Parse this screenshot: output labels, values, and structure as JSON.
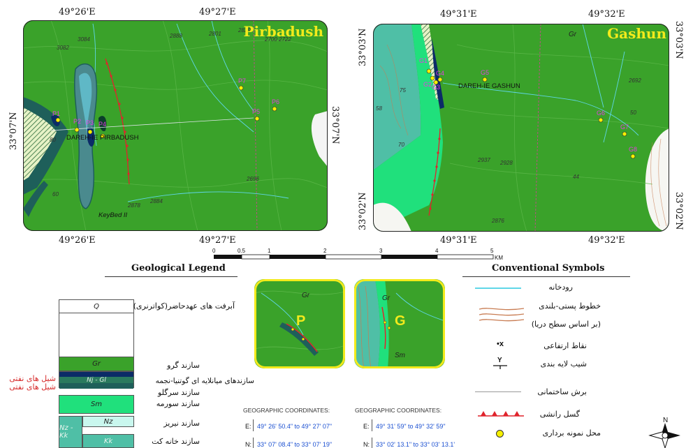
{
  "maps": {
    "left": {
      "title": "Pirbadush",
      "lon_labels": [
        "49°26'E",
        "49°27'E",
        "49°26'E",
        "49°27'E"
      ],
      "lat_left": "33°07'N",
      "lat_right": "33°07'N",
      "valley_label": "DAREH-IE PIRBADUSH",
      "keybed_label": "KeyBed II",
      "points": [
        "P1",
        "P2",
        "P3",
        "P4",
        "P5",
        "P6",
        "P7"
      ],
      "spot_heights": [
        "3082",
        "3084",
        "2888",
        "2801",
        "2829",
        "2700",
        "2722",
        "2696",
        "2878",
        "2884",
        "80",
        "60"
      ]
    },
    "right": {
      "title": "Gashun",
      "lon_labels": [
        "49°31'E",
        "49°32'E",
        "49°31'E",
        "49°32'E"
      ],
      "lat_left_top": "33°03'N",
      "lat_left_bottom": "33°02'N",
      "lat_right_top": "33°03'N",
      "lat_right_bottom": "33°02'N",
      "gr_label": "Gr",
      "valley_label": "DAREH-IE GASHUN",
      "points": [
        "G1",
        "G2",
        "G3",
        "G4",
        "G5",
        "G6",
        "G7",
        "G8"
      ],
      "spot_heights": [
        "2937",
        "2928",
        "2876",
        "2692",
        "75",
        "58",
        "70",
        "44",
        "50"
      ]
    }
  },
  "scale_bar": {
    "ticks": [
      "0",
      "0.5",
      "1",
      "2",
      "3",
      "4",
      "5"
    ],
    "unit": "KM"
  },
  "geological_legend": {
    "heading": "Geological Legend",
    "units": [
      {
        "code": "Q",
        "name": "آبرفت های عهدحاضر(کواترنری)"
      },
      {
        "code": "Gr",
        "name": "سازند گرو"
      },
      {
        "code": "Nj - Gl",
        "name": "سازندهای میانلایه ای گوتنیا-نجمه"
      },
      {
        "code": "",
        "name": "سازند سرگلو"
      },
      {
        "code": "Sm",
        "name": "سازند سورمه"
      },
      {
        "code": "Nz",
        "name": "سازند نیریز"
      },
      {
        "code": "Nz - Kk",
        "name": ""
      },
      {
        "code": "Kk",
        "name": "سازند خانه کت"
      }
    ],
    "oil_shale_labels": [
      "شیل های نفتی",
      "شیل های نفتی"
    ]
  },
  "insets": [
    {
      "letter": "P",
      "gr": "Gr"
    },
    {
      "letter": "G",
      "gr": "Gr",
      "sm": "Sm"
    }
  ],
  "geographic_coordinates": [
    {
      "heading": "GEOGRAPHIC COORDINATES:",
      "e_key": "E:",
      "e_value": "49° 26' 50.4\" to 49° 27' 07\"",
      "n_key": "N:",
      "n_value": "33° 07' 08.4\" to 33° 07' 19\""
    },
    {
      "heading": "GEOGRAPHIC COORDINATES:",
      "e_key": "E:",
      "e_value": "49° 31' 59\" to 49° 32' 59\"",
      "n_key": "N:",
      "n_value": "33° 02' 13.1\" to 33° 03' 13.1'"
    }
  ],
  "conventional_symbols": {
    "heading": "Conventional Symbols",
    "items": [
      {
        "icon": "river-line",
        "label": "رودخانه"
      },
      {
        "icon": "contour-lines",
        "label": "خطوط پستی-بلندی"
      },
      {
        "icon": "",
        "label": "(بر اساس سطح دریا)"
      },
      {
        "icon": "spot-height-x",
        "label": "نقاط ارتفاعی"
      },
      {
        "icon": "dip-symbol",
        "label": "شیب لایه بندی"
      },
      {
        "icon": "section-line",
        "label": "برش ساختمانی"
      },
      {
        "icon": "thrust-fault",
        "label": "گسل رانشی"
      },
      {
        "icon": "sample-point",
        "label": "محل نمونه برداری"
      }
    ]
  },
  "north_arrow": {
    "label": "N"
  },
  "colors": {
    "gr_green": "#3aa22a",
    "nj_gl_dark": "#0b2b67",
    "sargelu_teal": "#1e5f5a",
    "surmeh_light": "#20e07c",
    "neyriz_light": "#c9f7ee",
    "kk_teal": "#4fbfa6",
    "points_yellow": "#f6f000",
    "fault_red": "#e0242c",
    "river_cyan": "#5fd6e8",
    "title_yellow": "#f2ea1c"
  }
}
